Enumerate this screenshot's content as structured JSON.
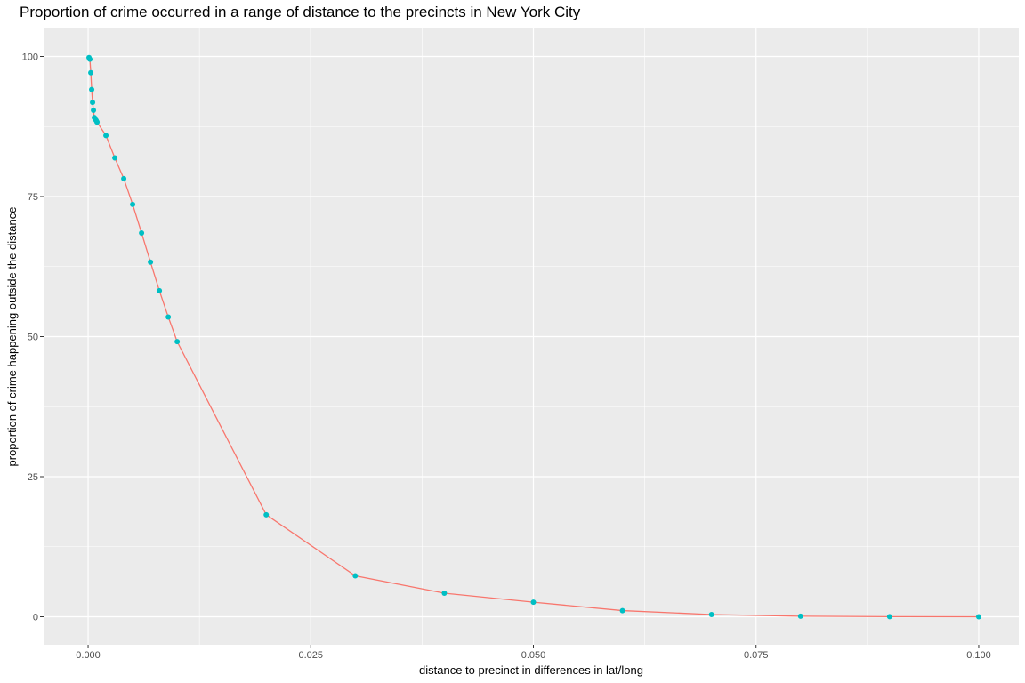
{
  "chart_data": {
    "type": "line",
    "title": "Proportion of crime occurred in a range of distance to the precincts in New York City",
    "xlabel": "distance to precinct in differences in lat/long",
    "ylabel": "proportion of crime happening outside the distance",
    "xlim": [
      -0.005,
      0.1045
    ],
    "ylim": [
      -5,
      105
    ],
    "x_ticks": [
      0,
      0.025,
      0.05,
      0.075,
      0.1
    ],
    "x_tick_labels": [
      "0.000",
      "0.025",
      "0.050",
      "0.075",
      "0.100"
    ],
    "y_ticks": [
      0,
      25,
      50,
      75,
      100
    ],
    "y_tick_labels": [
      "0",
      "25",
      "50",
      "75",
      "100"
    ],
    "grid": true,
    "line_color": "#F8766D",
    "point_color": "#00BFC4",
    "panel_color": "#EBEBEB",
    "series": [
      {
        "x": [
          0.0001,
          0.0002,
          0.0003,
          0.0004,
          0.0005,
          0.0006,
          0.0007,
          0.0008,
          0.0009,
          0.001,
          0.002,
          0.003,
          0.004,
          0.005,
          0.006,
          0.007,
          0.008,
          0.009,
          0.01,
          0.02,
          0.03,
          0.04,
          0.05,
          0.06,
          0.07,
          0.08,
          0.09,
          0.1
        ],
        "y": [
          99.8,
          99.5,
          97.1,
          94.1,
          91.8,
          90.4,
          89.1,
          88.8,
          88.6,
          88.3,
          85.9,
          81.9,
          78.2,
          73.6,
          68.5,
          63.3,
          58.2,
          53.5,
          49.1,
          18.2,
          7.3,
          4.2,
          2.6,
          1.1,
          0.4,
          0.1,
          0.02,
          0.0
        ]
      }
    ]
  }
}
